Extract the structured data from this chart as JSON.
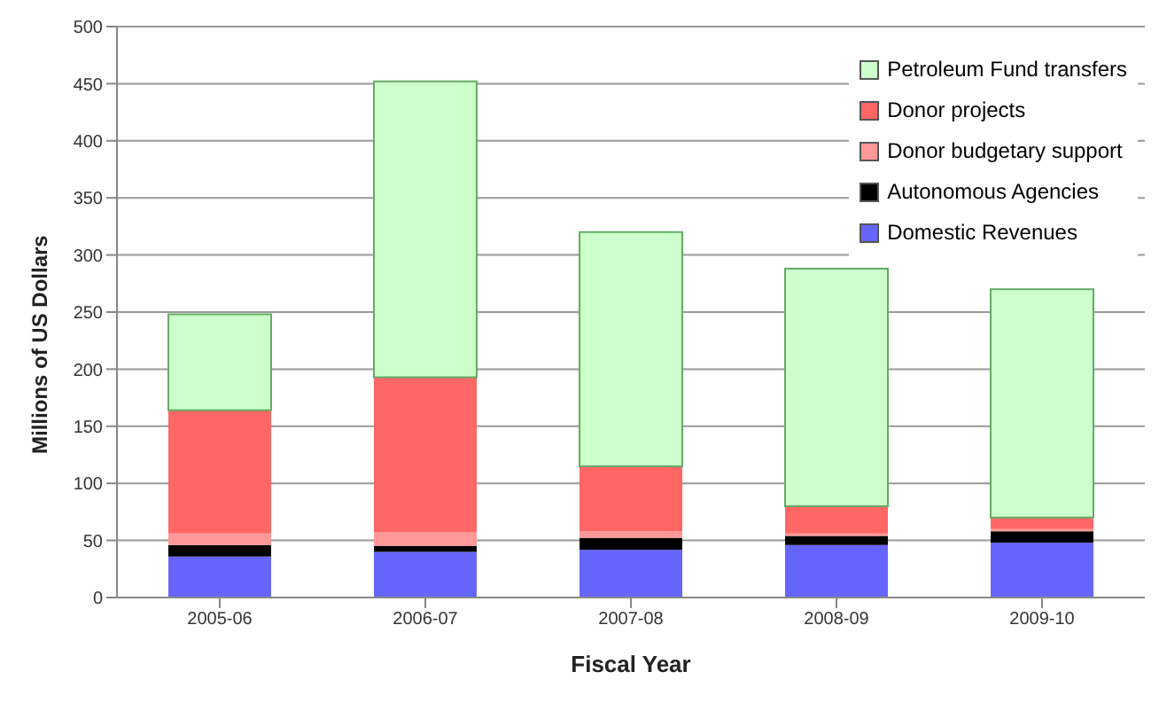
{
  "chart_data": {
    "type": "bar",
    "stacked": true,
    "xlabel": "Fiscal Year",
    "ylabel": "Millions of US Dollars",
    "categories": [
      "2005-06",
      "2006-07",
      "2007-08",
      "2008-09",
      "2009-10"
    ],
    "series": [
      {
        "name": "Domestic Revenues",
        "color": "#6666ff",
        "values": [
          36,
          40,
          42,
          46,
          48
        ]
      },
      {
        "name": "Autonomous Agencies",
        "color": "#000000",
        "values": [
          10,
          5,
          10,
          8,
          10
        ]
      },
      {
        "name": "Donor budgetary support",
        "color": "#ff9999",
        "values": [
          10,
          12,
          6,
          2,
          2
        ]
      },
      {
        "name": "Donor projects",
        "color": "#ff6666",
        "values": [
          108,
          136,
          57,
          24,
          10
        ]
      },
      {
        "name": "Petroleum Fund transfers",
        "color": "#ccffcc",
        "values": [
          84,
          259,
          205,
          208,
          200
        ]
      }
    ],
    "ylim": [
      0,
      500
    ],
    "yticks": [
      0,
      50,
      100,
      150,
      200,
      250,
      300,
      350,
      400,
      450,
      500
    ],
    "grid": "y",
    "legend": "top right"
  }
}
